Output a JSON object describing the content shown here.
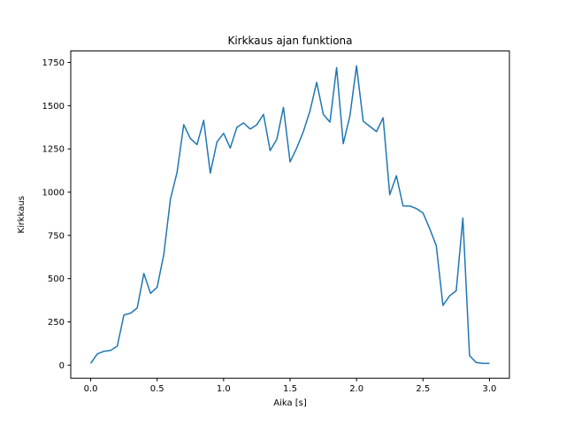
{
  "figure": {
    "title": "Kirkkaus ajan funktiona",
    "xlabel": "Aika [s]",
    "ylabel": "Kirkkaus",
    "line_color": "#1f77b4",
    "background_color": "#ffffff",
    "spine_color": "#000000"
  },
  "chart_data": {
    "type": "line",
    "title": "Kirkkaus ajan funktiona",
    "xlabel": "Aika [s]",
    "ylabel": "Kirkkaus",
    "legend": false,
    "grid": false,
    "xlim": [
      -0.15,
      3.15
    ],
    "ylim": [
      -76,
      1816
    ],
    "x_ticks": [
      0.0,
      0.5,
      1.0,
      1.5,
      2.0,
      2.5,
      3.0
    ],
    "x_tick_labels": [
      "0.0",
      "0.5",
      "1.0",
      "1.5",
      "2.0",
      "2.5",
      "3.0"
    ],
    "y_ticks": [
      0,
      250,
      500,
      750,
      1000,
      1250,
      1500,
      1750
    ],
    "y_tick_labels": [
      "0",
      "250",
      "500",
      "750",
      "1000",
      "1250",
      "1500",
      "1750"
    ],
    "x": [
      0.0,
      0.05,
      0.1,
      0.15,
      0.2,
      0.25,
      0.3,
      0.35,
      0.4,
      0.45,
      0.5,
      0.55,
      0.6,
      0.65,
      0.7,
      0.75,
      0.8,
      0.85,
      0.9,
      0.95,
      1.0,
      1.05,
      1.1,
      1.15,
      1.2,
      1.25,
      1.3,
      1.35,
      1.4,
      1.45,
      1.5,
      1.55,
      1.6,
      1.65,
      1.7,
      1.75,
      1.8,
      1.85,
      1.9,
      1.95,
      2.0,
      2.05,
      2.1,
      2.15,
      2.2,
      2.25,
      2.3,
      2.35,
      2.4,
      2.45,
      2.5,
      2.55,
      2.6,
      2.65,
      2.7,
      2.75,
      2.8,
      2.85,
      2.9,
      2.95,
      3.0
    ],
    "y": [
      10,
      65,
      80,
      85,
      110,
      290,
      300,
      330,
      530,
      415,
      450,
      640,
      960,
      1115,
      1390,
      1310,
      1275,
      1415,
      1110,
      1290,
      1340,
      1255,
      1375,
      1400,
      1365,
      1390,
      1450,
      1240,
      1305,
      1490,
      1175,
      1255,
      1350,
      1470,
      1635,
      1450,
      1405,
      1720,
      1280,
      1440,
      1730,
      1410,
      1380,
      1350,
      1430,
      985,
      1095,
      920,
      920,
      905,
      880,
      790,
      690,
      345,
      400,
      430,
      850,
      55,
      15,
      10,
      10
    ]
  }
}
